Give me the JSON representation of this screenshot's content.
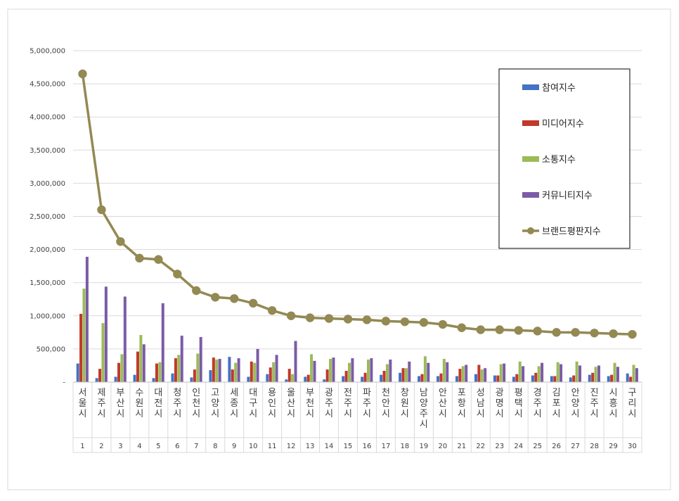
{
  "chart_data": {
    "type": "bar",
    "title": "",
    "xlabel": "",
    "ylabel": "",
    "ylim": [
      0,
      5000000
    ],
    "yticks": [
      "-",
      "500,000",
      "1,000,000",
      "1,500,000",
      "2,000,000",
      "2,500,000",
      "3,000,000",
      "3,500,000",
      "4,000,000",
      "4,500,000",
      "5,000,000"
    ],
    "grid": true,
    "legend_position": "top-right",
    "categories": [
      "서울시",
      "제주시",
      "부산시",
      "수원시",
      "대전시",
      "청주시",
      "인천시",
      "고양시",
      "세종시",
      "대구시",
      "용인시",
      "울산시",
      "부천시",
      "광주시",
      "전주시",
      "파주시",
      "천안시",
      "창원시",
      "남양주시",
      "안산시",
      "포항시",
      "성남시",
      "광명시",
      "평택시",
      "경주시",
      "김포시",
      "안양시",
      "진주시",
      "시흥시",
      "구리시"
    ],
    "ranks": [
      "1",
      "2",
      "3",
      "4",
      "5",
      "6",
      "7",
      "8",
      "9",
      "10",
      "11",
      "12",
      "13",
      "14",
      "15",
      "16",
      "17",
      "18",
      "19",
      "20",
      "21",
      "22",
      "23",
      "24",
      "25",
      "26",
      "27",
      "28",
      "29",
      "30"
    ],
    "series": [
      {
        "name": "참여지수",
        "kind": "bar",
        "color": "#4472C4",
        "values": [
          280000,
          60000,
          80000,
          110000,
          60000,
          130000,
          70000,
          180000,
          380000,
          80000,
          120000,
          40000,
          80000,
          40000,
          90000,
          80000,
          110000,
          140000,
          90000,
          90000,
          90000,
          120000,
          100000,
          80000,
          100000,
          90000,
          70000,
          110000,
          90000,
          130000
        ]
      },
      {
        "name": "미디어지수",
        "kind": "bar",
        "color": "#C0392B",
        "values": [
          1030000,
          200000,
          290000,
          460000,
          280000,
          360000,
          190000,
          370000,
          190000,
          310000,
          220000,
          200000,
          110000,
          190000,
          170000,
          140000,
          170000,
          210000,
          120000,
          130000,
          200000,
          260000,
          100000,
          120000,
          140000,
          90000,
          100000,
          140000,
          110000,
          80000
        ]
      },
      {
        "name": "소통지수",
        "kind": "bar",
        "color": "#9BBB59",
        "values": [
          1410000,
          890000,
          420000,
          710000,
          300000,
          410000,
          430000,
          340000,
          290000,
          290000,
          300000,
          120000,
          420000,
          350000,
          290000,
          340000,
          270000,
          210000,
          390000,
          350000,
          240000,
          190000,
          270000,
          310000,
          240000,
          300000,
          310000,
          230000,
          290000,
          260000
        ]
      },
      {
        "name": "커뮤니티지수",
        "kind": "bar",
        "color": "#7B5BA6",
        "values": [
          1890000,
          1440000,
          1290000,
          570000,
          1190000,
          700000,
          680000,
          350000,
          360000,
          500000,
          410000,
          620000,
          320000,
          370000,
          360000,
          360000,
          340000,
          310000,
          290000,
          300000,
          260000,
          210000,
          280000,
          240000,
          290000,
          270000,
          250000,
          250000,
          230000,
          210000
        ]
      },
      {
        "name": "브랜드평판지수",
        "kind": "line",
        "color": "#938953",
        "values": [
          4650000,
          2600000,
          2120000,
          1870000,
          1850000,
          1630000,
          1380000,
          1280000,
          1260000,
          1190000,
          1080000,
          1000000,
          970000,
          960000,
          950000,
          940000,
          920000,
          910000,
          900000,
          870000,
          820000,
          790000,
          790000,
          780000,
          770000,
          750000,
          750000,
          740000,
          730000,
          720000
        ]
      }
    ]
  }
}
